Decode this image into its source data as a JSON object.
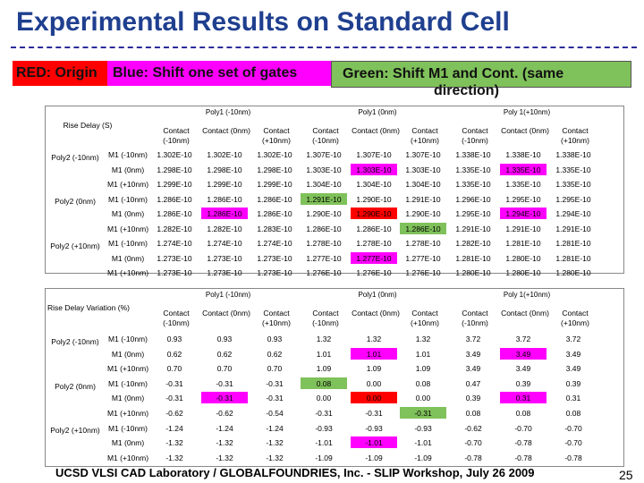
{
  "title": "Experimental Results on Standard Cell",
  "legend": {
    "red": "RED: Origin",
    "blue": "Blue: Shift one set of gates",
    "green_line1": "Green: Shift M1 and Cont. (same",
    "green_line2": "direction)"
  },
  "colors": {
    "red": "#ff0000",
    "blue": "#ff00ff",
    "green": "#7fc15a",
    "title": "#1f3f8f"
  },
  "poly_headers": [
    "Poly1 (-10nm)",
    "Poly1 (0nm)",
    "Poly 1(+10nm)"
  ],
  "contact_headers": [
    "Contact (-10nm)",
    "Contact (0nm)",
    "Contact (+10nm)"
  ],
  "row_groups": [
    "Poly2 (-10nm)",
    "Poly2 (0nm)",
    "Poly2 (+10nm)"
  ],
  "m1_labels": [
    "M1 (-10nm)",
    "M1 (0nm)",
    "M1 (+10nm)"
  ],
  "table1": {
    "label": "Rise Delay (S)",
    "rows": [
      [
        "1.302E-10",
        "1.302E-10",
        "1.302E-10",
        "1.307E-10",
        "1.307E-10",
        "1.307E-10",
        "1.338E-10",
        "1.338E-10",
        "1.338E-10"
      ],
      [
        "1.298E-10",
        "1.298E-10",
        "1.298E-10",
        "1.303E-10",
        "1.303E-10",
        "1.303E-10",
        "1.335E-10",
        "1.335E-10",
        "1.335E-10"
      ],
      [
        "1.299E-10",
        "1.299E-10",
        "1.299E-10",
        "1.304E-10",
        "1.304E-10",
        "1.304E-10",
        "1.335E-10",
        "1.335E-10",
        "1.335E-10"
      ],
      [
        "1.286E-10",
        "1.286E-10",
        "1.286E-10",
        "1.291E-10",
        "1.290E-10",
        "1.291E-10",
        "1.296E-10",
        "1.295E-10",
        "1.295E-10"
      ],
      [
        "1.286E-10",
        "1.286E-10",
        "1.286E-10",
        "1.290E-10",
        "1.290E-10",
        "1.290E-10",
        "1.295E-10",
        "1.294E-10",
        "1.294E-10"
      ],
      [
        "1.282E-10",
        "1.282E-10",
        "1.283E-10",
        "1.286E-10",
        "1.286E-10",
        "1.286E-10",
        "1.291E-10",
        "1.291E-10",
        "1.291E-10"
      ],
      [
        "1.274E-10",
        "1.274E-10",
        "1.274E-10",
        "1.278E-10",
        "1.278E-10",
        "1.278E-10",
        "1.282E-10",
        "1.281E-10",
        "1.281E-10"
      ],
      [
        "1.273E-10",
        "1.273E-10",
        "1.273E-10",
        "1.277E-10",
        "1.277E-10",
        "1.277E-10",
        "1.281E-10",
        "1.280E-10",
        "1.281E-10"
      ],
      [
        "1.273E-10",
        "1.273E-10",
        "1.273E-10",
        "1.276E-10",
        "1.276E-10",
        "1.276E-10",
        "1.280E-10",
        "1.280E-10",
        "1.280E-10"
      ]
    ],
    "highlights": [
      {
        "r": 1,
        "c": 4,
        "color": "blue"
      },
      {
        "r": 1,
        "c": 7,
        "color": "blue"
      },
      {
        "r": 3,
        "c": 3,
        "color": "green"
      },
      {
        "r": 4,
        "c": 1,
        "color": "blue"
      },
      {
        "r": 4,
        "c": 4,
        "color": "red"
      },
      {
        "r": 4,
        "c": 7,
        "color": "blue"
      },
      {
        "r": 5,
        "c": 5,
        "color": "green"
      },
      {
        "r": 7,
        "c": 4,
        "color": "blue"
      }
    ]
  },
  "table2": {
    "label": "Rise Delay Variation (%)",
    "rows": [
      [
        "0.93",
        "0.93",
        "0.93",
        "1.32",
        "1.32",
        "1.32",
        "3.72",
        "3.72",
        "3.72"
      ],
      [
        "0.62",
        "0.62",
        "0.62",
        "1.01",
        "1.01",
        "1.01",
        "3.49",
        "3.49",
        "3.49"
      ],
      [
        "0.70",
        "0.70",
        "0.70",
        "1.09",
        "1.09",
        "1.09",
        "3.49",
        "3.49",
        "3.49"
      ],
      [
        "-0.31",
        "-0.31",
        "-0.31",
        "0.08",
        "0.00",
        "0.08",
        "0.47",
        "0.39",
        "0.39"
      ],
      [
        "-0.31",
        "-0.31",
        "-0.31",
        "0.00",
        "0.00",
        "0.00",
        "0.39",
        "0.31",
        "0.31"
      ],
      [
        "-0.62",
        "-0.62",
        "-0.54",
        "-0.31",
        "-0.31",
        "-0.31",
        "0.08",
        "0.08",
        "0.08"
      ],
      [
        "-1.24",
        "-1.24",
        "-1.24",
        "-0.93",
        "-0.93",
        "-0.93",
        "-0.62",
        "-0.70",
        "-0.70"
      ],
      [
        "-1.32",
        "-1.32",
        "-1.32",
        "-1.01",
        "-1.01",
        "-1.01",
        "-0.70",
        "-0.78",
        "-0.70"
      ],
      [
        "-1.32",
        "-1.32",
        "-1.32",
        "-1.09",
        "-1.09",
        "-1.09",
        "-0.78",
        "-0.78",
        "-0.78"
      ]
    ],
    "highlights": [
      {
        "r": 1,
        "c": 4,
        "color": "blue"
      },
      {
        "r": 1,
        "c": 7,
        "color": "blue"
      },
      {
        "r": 3,
        "c": 3,
        "color": "green"
      },
      {
        "r": 4,
        "c": 1,
        "color": "blue"
      },
      {
        "r": 4,
        "c": 4,
        "color": "red"
      },
      {
        "r": 4,
        "c": 7,
        "color": "blue"
      },
      {
        "r": 5,
        "c": 5,
        "color": "green"
      },
      {
        "r": 7,
        "c": 4,
        "color": "blue"
      }
    ]
  },
  "footer": "UCSD VLSI CAD Laboratory /   GLOBALFOUNDRIES, Inc.  - SLIP Workshop, July 26 2009",
  "page_number": "25"
}
